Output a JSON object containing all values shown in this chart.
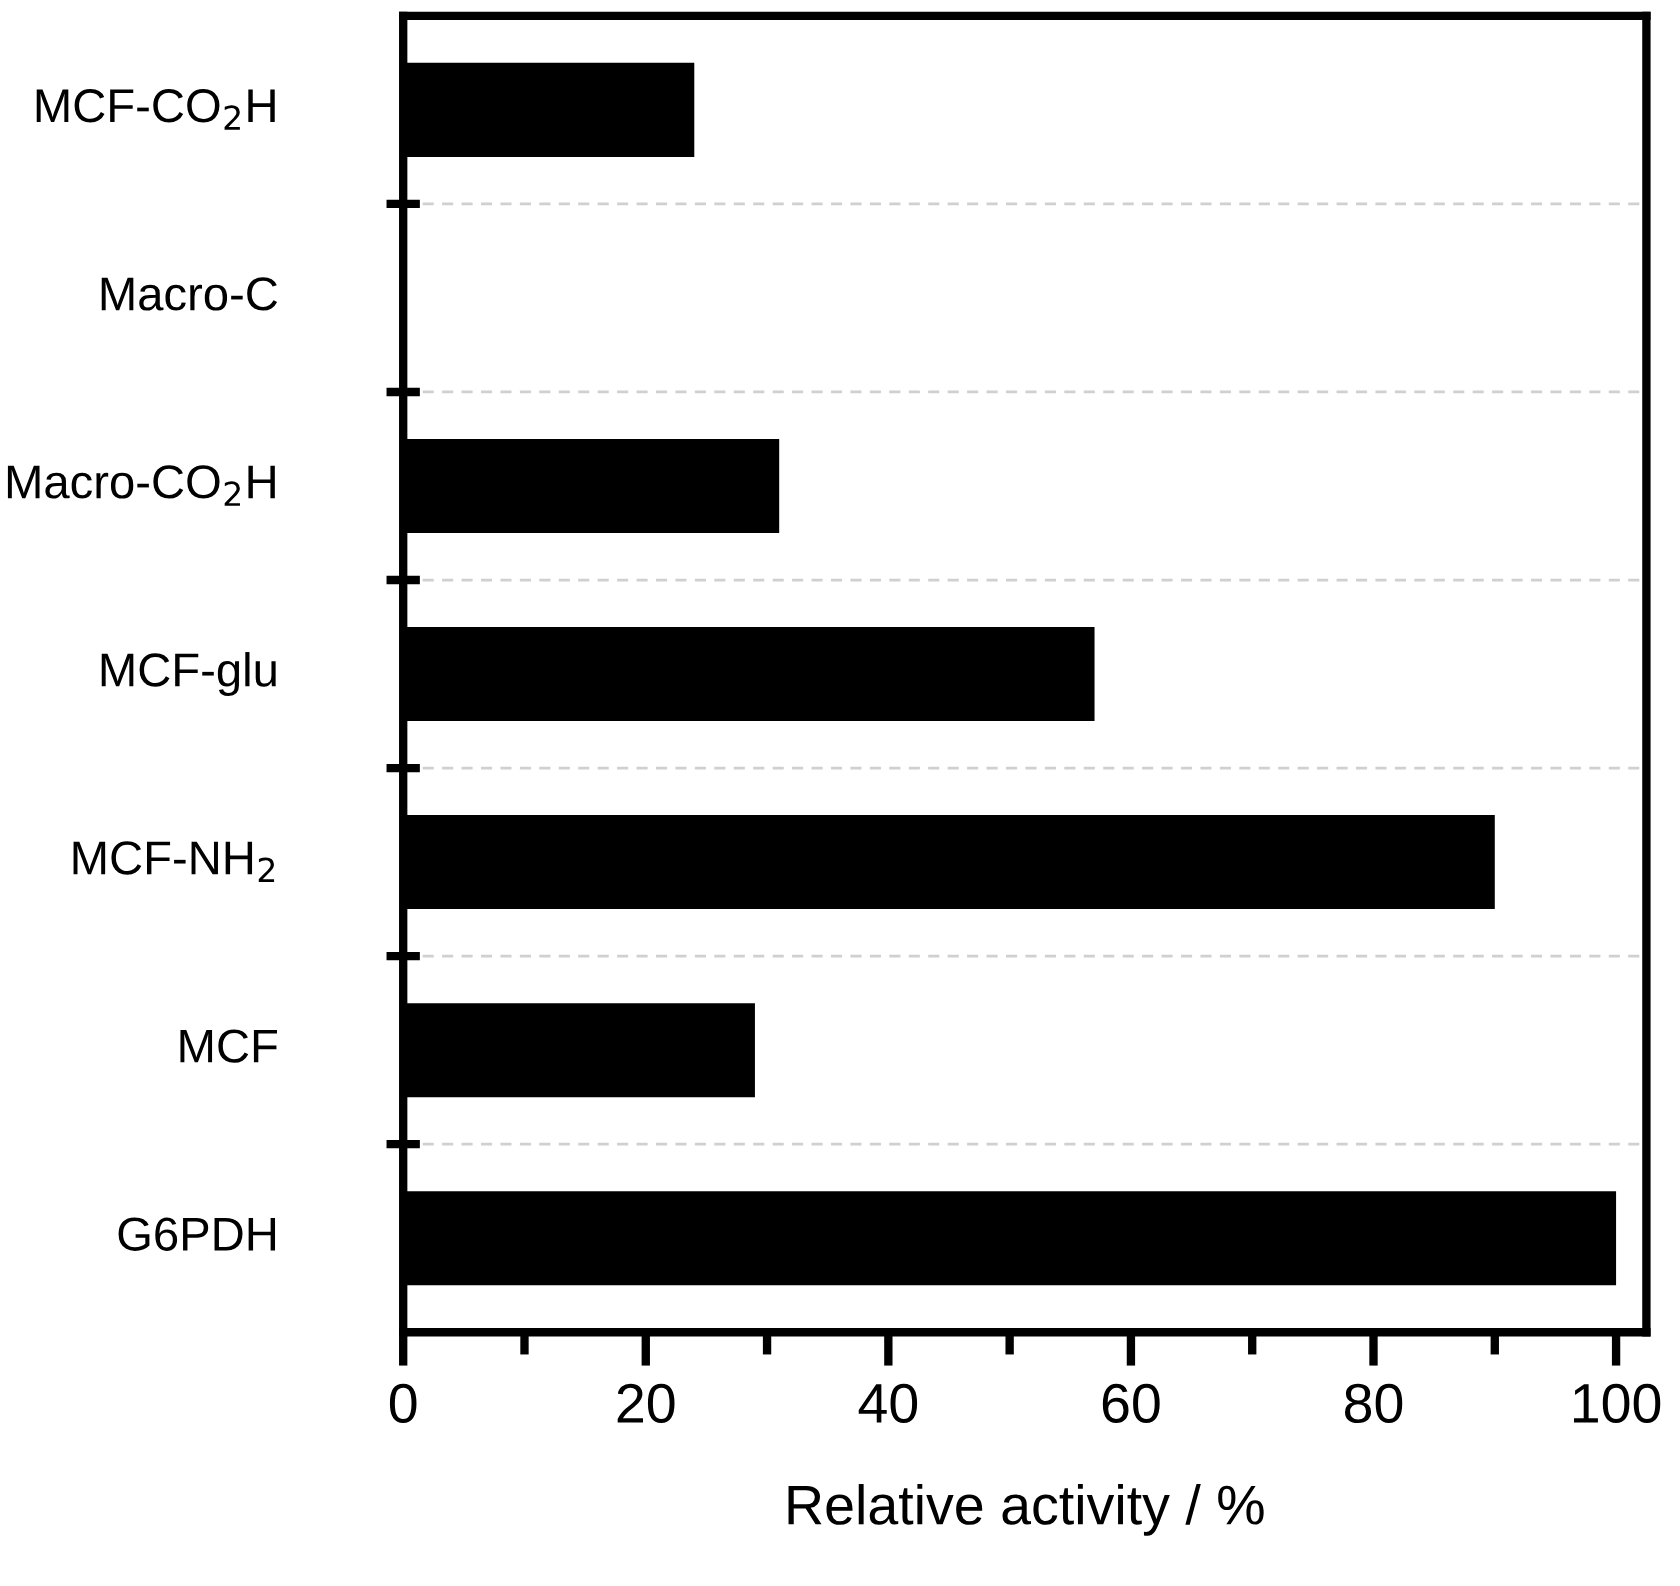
{
  "chart_data": {
    "type": "bar",
    "orientation": "horizontal",
    "xlabel": "Relative activity / %",
    "categories": [
      "MCF-CO$_{2}$H",
      "Macro-C",
      "Macro-CO$_{2}$H",
      "MCF-glu",
      "MCF-NH$_{2}$",
      "MCF",
      "G6PDH"
    ],
    "values": [
      24,
      0,
      31,
      57,
      90,
      29,
      100
    ],
    "color": "#000000",
    "xlim": [
      0,
      102.5
    ],
    "xticks": [
      0,
      20,
      40,
      60,
      80,
      100
    ],
    "grid": "y"
  }
}
